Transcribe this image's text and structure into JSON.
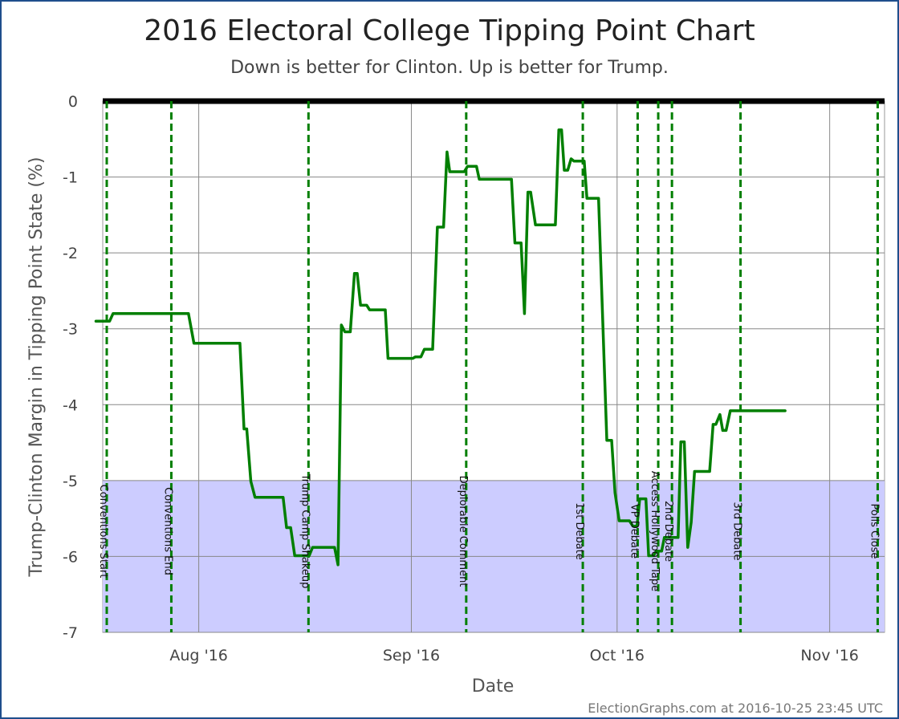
{
  "chart_data": {
    "type": "line",
    "title": "2016 Electoral College Tipping Point Chart",
    "subtitle": "Down is better for Clinton. Up is better for Trump.",
    "xlabel": "Date",
    "ylabel": "Trump-Clinton Margin in Tipping Point State (%)",
    "credit": "ElectionGraphs.com at 2016-10-25 23:45 UTC",
    "xlim": [
      "2016-07-18",
      "2016-11-09"
    ],
    "ylim": [
      -7,
      0
    ],
    "y_ticks": [
      0,
      -1,
      -2,
      -3,
      -4,
      -5,
      -6,
      -7
    ],
    "x_ticks": [
      {
        "date": "2016-08-01",
        "label": "Aug '16"
      },
      {
        "date": "2016-09-01",
        "label": "Sep '16"
      },
      {
        "date": "2016-10-01",
        "label": "Oct '16"
      },
      {
        "date": "2016-11-01",
        "label": "Nov '16"
      }
    ],
    "grid": true,
    "shaded_band": {
      "from": -7,
      "to": -5,
      "color": "#ccccff"
    },
    "zero_line_color": "#000000",
    "line_color": "#007f00",
    "event_line_color": "#007f00",
    "events": [
      {
        "date": "2016-07-18",
        "label": "Conventions Start"
      },
      {
        "date": "2016-07-28",
        "label": "Conventions End"
      },
      {
        "date": "2016-08-17",
        "label": "Trump Camp Shakeup"
      },
      {
        "date": "2016-09-09",
        "label": "Deplorable Comment"
      },
      {
        "date": "2016-09-26",
        "label": "1st Debate"
      },
      {
        "date": "2016-10-04",
        "label": "VP Debate"
      },
      {
        "date": "2016-10-07",
        "label": "Access Hollywood Tape"
      },
      {
        "date": "2016-10-09",
        "label": "2nd Debate"
      },
      {
        "date": "2016-10-19",
        "label": "3rd Debate"
      },
      {
        "date": "2016-11-08",
        "label": "Polls Close"
      }
    ],
    "series": [
      {
        "points": [
          [
            "2016-07-17",
            -2.9
          ],
          [
            "2016-07-19",
            -2.9
          ],
          [
            "2016-07-19.5",
            -2.8
          ],
          [
            "2016-07-30.5",
            -2.8
          ],
          [
            "2016-07-31.3",
            -3.19
          ],
          [
            "2016-08-07",
            -3.19
          ],
          [
            "2016-08-07.6",
            -4.32
          ],
          [
            "2016-08-08",
            -4.32
          ],
          [
            "2016-08-08.6",
            -5.01
          ],
          [
            "2016-08-09.2",
            -5.22
          ],
          [
            "2016-08-13.3",
            -5.22
          ],
          [
            "2016-08-13.8",
            -5.62
          ],
          [
            "2016-08-14.4",
            -5.62
          ],
          [
            "2016-08-15",
            -5.99
          ],
          [
            "2016-08-17.1",
            -5.99
          ],
          [
            "2016-08-17.6",
            -5.88
          ],
          [
            "2016-08-20.8",
            -5.88
          ],
          [
            "2016-08-21.3",
            -6.11
          ],
          [
            "2016-08-21.8",
            -2.95
          ],
          [
            "2016-08-22.3",
            -3.04
          ],
          [
            "2016-08-23.1",
            -3.04
          ],
          [
            "2016-08-23.7",
            -2.27
          ],
          [
            "2016-08-24.1",
            -2.27
          ],
          [
            "2016-08-24.6",
            -2.69
          ],
          [
            "2016-08-25.5",
            -2.69
          ],
          [
            "2016-08-25.9",
            -2.75
          ],
          [
            "2016-08-28.2",
            -2.75
          ],
          [
            "2016-08-28.6",
            -3.39
          ],
          [
            "2016-09-01.2",
            -3.39
          ],
          [
            "2016-09-01.6",
            -3.37
          ],
          [
            "2016-09-02.4",
            -3.37
          ],
          [
            "2016-09-02.9",
            -3.27
          ],
          [
            "2016-09-04.1",
            -3.27
          ],
          [
            "2016-09-04.8",
            -1.66
          ],
          [
            "2016-09-05.7",
            -1.66
          ],
          [
            "2016-09-06.2",
            -0.67
          ],
          [
            "2016-09-06.6",
            -0.93
          ],
          [
            "2016-09-08.7",
            -0.93
          ],
          [
            "2016-09-09.2",
            -0.86
          ],
          [
            "2016-09-10.5",
            -0.86
          ],
          [
            "2016-09-10.9",
            -1.03
          ],
          [
            "2016-09-15.6",
            -1.03
          ],
          [
            "2016-09-16.1",
            -1.87
          ],
          [
            "2016-09-17",
            -1.87
          ],
          [
            "2016-09-17.5",
            -2.8
          ],
          [
            "2016-09-18",
            -1.2
          ],
          [
            "2016-09-18.4",
            -1.2
          ],
          [
            "2016-09-19.1",
            -1.63
          ],
          [
            "2016-09-22",
            -1.63
          ],
          [
            "2016-09-22.5",
            -0.38
          ],
          [
            "2016-09-22.9",
            -0.38
          ],
          [
            "2016-09-23.3",
            -0.91
          ],
          [
            "2016-09-23.8",
            -0.91
          ],
          [
            "2016-09-24.3",
            -0.76
          ],
          [
            "2016-09-24.7",
            -0.79
          ],
          [
            "2016-09-26.2",
            -0.79
          ],
          [
            "2016-09-26.6",
            -1.28
          ],
          [
            "2016-09-28.3",
            -1.28
          ],
          [
            "2016-09-29.5",
            -4.47
          ],
          [
            "2016-09-30.2",
            -4.47
          ],
          [
            "2016-09-30.7",
            -5.16
          ],
          [
            "2016-10-01.3",
            -5.53
          ],
          [
            "2016-10-02.8",
            -5.53
          ],
          [
            "2016-10-03.3",
            -5.6
          ],
          [
            "2016-10-03.9",
            -5.6
          ],
          [
            "2016-10-04.3",
            -5.24
          ],
          [
            "2016-10-05.2",
            -5.24
          ],
          [
            "2016-10-05.6",
            -5.99
          ],
          [
            "2016-10-06.3",
            -5.99
          ],
          [
            "2016-10-06.7",
            -5.93
          ],
          [
            "2016-10-07.5",
            -5.93
          ],
          [
            "2016-10-07.9",
            -5.75
          ],
          [
            "2016-10-09.9",
            -5.75
          ],
          [
            "2016-10-10.3",
            -4.49
          ],
          [
            "2016-10-10.8",
            -4.49
          ],
          [
            "2016-10-11.3",
            -5.88
          ],
          [
            "2016-10-11.8",
            -5.55
          ],
          [
            "2016-10-12.3",
            -4.88
          ],
          [
            "2016-10-14.5",
            -4.88
          ],
          [
            "2016-10-15",
            -4.26
          ],
          [
            "2016-10-15.4",
            -4.26
          ],
          [
            "2016-10-16",
            -4.13
          ],
          [
            "2016-10-16.4",
            -4.34
          ],
          [
            "2016-10-16.9",
            -4.34
          ],
          [
            "2016-10-17.5",
            -4.08
          ],
          [
            "2016-10-25.5",
            -4.08
          ]
        ]
      }
    ]
  }
}
